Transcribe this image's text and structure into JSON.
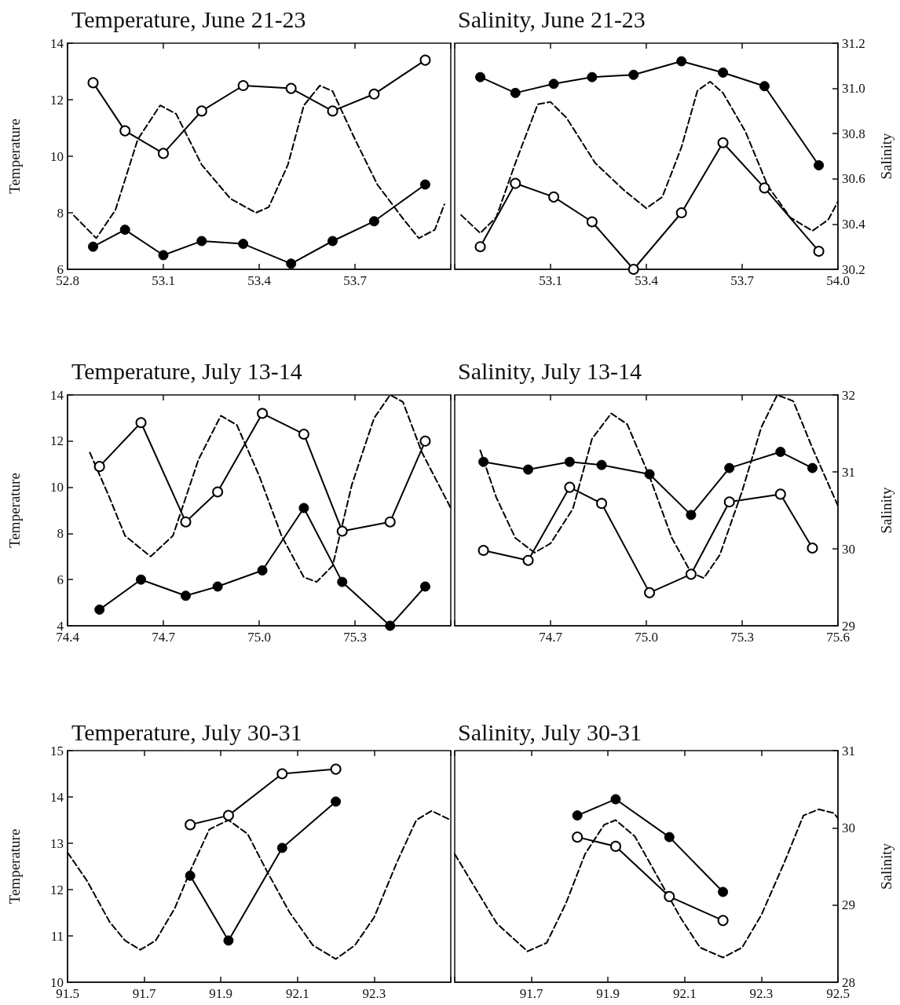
{
  "chart_data": [
    {
      "type": "line",
      "title": "Temperature, June 21-23",
      "ylabel": "Temperature",
      "xlim": [
        52.8,
        54.0
      ],
      "xticks": [
        52.8,
        53.1,
        53.4,
        53.7,
        {
          "value": 54,
          "label": null
        }
      ],
      "ylim": [
        6,
        14
      ],
      "yticks": [
        6,
        8,
        10,
        12,
        14
      ],
      "series": [
        {
          "color": "#000000",
          "marker": "circle_open",
          "line_style": "solid",
          "x": [
            52.88,
            52.98,
            53.1,
            53.22,
            53.35,
            53.5,
            53.63,
            53.76,
            53.92
          ],
          "values": [
            12.6,
            10.9,
            10.1,
            11.6,
            12.5,
            12.4,
            11.6,
            12.2,
            13.4
          ]
        },
        {
          "color": "#000000",
          "marker": "circle",
          "line_style": "solid",
          "x": [
            52.88,
            52.98,
            53.1,
            53.22,
            53.35,
            53.5,
            53.63,
            53.76,
            53.92
          ],
          "values": [
            6.8,
            7.4,
            6.5,
            7.0,
            6.9,
            6.2,
            7.0,
            7.7,
            9.0
          ]
        },
        {
          "color": "#000000",
          "marker": "none",
          "line_style": "dashed",
          "x": [
            52.82,
            52.89,
            52.95,
            53.02,
            53.09,
            53.14,
            53.22,
            53.31,
            53.39,
            53.43,
            53.49,
            53.54,
            53.59,
            53.63,
            53.7,
            53.77,
            53.85,
            53.9,
            53.95,
            53.98
          ],
          "values": [
            7.9,
            7.1,
            8.1,
            10.6,
            11.8,
            11.5,
            9.7,
            8.5,
            8.0,
            8.2,
            9.7,
            11.8,
            12.5,
            12.3,
            10.6,
            9.0,
            7.8,
            7.1,
            7.4,
            8.3
          ]
        }
      ]
    },
    {
      "type": "line",
      "title": "Salinity, June 21-23",
      "y2label": "Salinity",
      "xlim": [
        52.8,
        54.0
      ],
      "xticks": [
        {
          "value": 52.8,
          "label": null
        },
        53.1,
        53.4,
        53.7,
        {
          "value": 54,
          "label": "54.0"
        }
      ],
      "y2lim": [
        30.2,
        31.2
      ],
      "y2ticks": [
        30.2,
        30.4,
        30.6,
        30.8,
        {
          "value": 31,
          "label": "31.0"
        },
        31.2
      ],
      "series": [
        {
          "color": "#000000",
          "marker": "circle",
          "line_style": "solid",
          "axis": "y2",
          "x": [
            52.88,
            52.99,
            53.11,
            53.23,
            53.36,
            53.51,
            53.64,
            53.77,
            53.94
          ],
          "values": [
            31.05,
            30.98,
            31.02,
            31.05,
            31.06,
            31.12,
            31.07,
            31.01,
            30.66
          ]
        },
        {
          "color": "#000000",
          "marker": "circle_open",
          "line_style": "solid",
          "axis": "y2",
          "x": [
            52.88,
            52.99,
            53.11,
            53.23,
            53.36,
            53.51,
            53.64,
            53.77,
            53.94
          ],
          "values": [
            30.3,
            30.58,
            30.52,
            30.41,
            30.2,
            30.45,
            30.76,
            30.56,
            30.28
          ]
        },
        {
          "color": "#000000",
          "marker": "none",
          "line_style": "dashed",
          "axis": "y2",
          "x": [
            52.82,
            52.88,
            52.93,
            52.99,
            53.06,
            53.1,
            53.15,
            53.24,
            53.33,
            53.4,
            53.45,
            53.51,
            53.56,
            53.6,
            53.64,
            53.71,
            53.78,
            53.85,
            53.92,
            53.97,
            54.0
          ],
          "values": [
            30.44,
            30.36,
            30.43,
            30.67,
            30.93,
            30.94,
            30.87,
            30.67,
            30.55,
            30.47,
            30.52,
            30.74,
            30.99,
            31.03,
            30.98,
            30.81,
            30.57,
            30.43,
            30.37,
            30.42,
            30.5
          ]
        }
      ]
    },
    {
      "type": "line",
      "title": "Temperature, July 13-14",
      "ylabel": "Temperature",
      "xlim": [
        74.4,
        75.6
      ],
      "xticks": [
        74.4,
        74.7,
        {
          "value": 75,
          "label": "75.0"
        },
        75.3,
        {
          "value": 75.6,
          "label": null
        }
      ],
      "ylim": [
        4,
        14
      ],
      "yticks": [
        4,
        6,
        8,
        10,
        12,
        14
      ],
      "series": [
        {
          "color": "#000000",
          "marker": "circle_open",
          "line_style": "solid",
          "x": [
            74.5,
            74.63,
            74.77,
            74.87,
            75.01,
            75.14,
            75.26,
            75.41,
            75.52
          ],
          "values": [
            10.9,
            12.8,
            8.5,
            9.8,
            13.2,
            12.3,
            8.1,
            8.5,
            12.0
          ]
        },
        {
          "color": "#000000",
          "marker": "circle",
          "line_style": "solid",
          "x": [
            74.5,
            74.63,
            74.77,
            74.87,
            75.01,
            75.14,
            75.26,
            75.41,
            75.52
          ],
          "values": [
            4.7,
            6.0,
            5.3,
            5.7,
            6.4,
            9.1,
            5.9,
            4.0,
            5.7
          ]
        },
        {
          "color": "#000000",
          "marker": "none",
          "line_style": "dashed",
          "x": [
            74.47,
            74.53,
            74.58,
            74.66,
            74.73,
            74.81,
            74.88,
            74.93,
            75.0,
            75.07,
            75.14,
            75.18,
            75.23,
            75.29,
            75.36,
            75.41,
            75.45,
            75.51,
            75.6
          ],
          "values": [
            11.5,
            9.6,
            7.9,
            7.0,
            7.9,
            11.2,
            13.1,
            12.7,
            10.5,
            7.9,
            6.1,
            5.9,
            6.6,
            10.1,
            13.0,
            14.0,
            13.7,
            11.5,
            9.1
          ]
        }
      ]
    },
    {
      "type": "line",
      "title": "Salinity, July 13-14",
      "y2label": "Salinity",
      "xlim": [
        74.4,
        75.6
      ],
      "xticks": [
        {
          "value": 74.4,
          "label": null
        },
        74.7,
        {
          "value": 75,
          "label": "75.0"
        },
        75.3,
        75.6
      ],
      "y2lim": [
        29,
        32
      ],
      "y2ticks": [
        29,
        30,
        31,
        32
      ],
      "series": [
        {
          "color": "#000000",
          "marker": "circle",
          "line_style": "solid",
          "axis": "y2",
          "x": [
            74.49,
            74.63,
            74.76,
            74.86,
            75.01,
            75.14,
            75.26,
            75.42,
            75.52
          ],
          "values": [
            31.13,
            31.03,
            31.13,
            31.09,
            30.97,
            30.44,
            31.05,
            31.26,
            31.05
          ]
        },
        {
          "color": "#000000",
          "marker": "circle_open",
          "line_style": "solid",
          "axis": "y2",
          "x": [
            74.49,
            74.63,
            74.76,
            74.86,
            75.01,
            75.14,
            75.26,
            75.42,
            75.52
          ],
          "values": [
            29.98,
            29.85,
            30.8,
            30.59,
            29.43,
            29.67,
            30.61,
            30.71,
            30.01
          ]
        },
        {
          "color": "#000000",
          "marker": "none",
          "line_style": "dashed",
          "axis": "y2",
          "x": [
            74.48,
            74.53,
            74.59,
            74.65,
            74.7,
            74.77,
            74.83,
            74.89,
            74.94,
            75.01,
            75.08,
            75.14,
            75.18,
            75.23,
            75.3,
            75.36,
            75.41,
            75.46,
            75.52,
            75.6
          ],
          "values": [
            31.28,
            30.67,
            30.14,
            29.95,
            30.07,
            30.52,
            31.43,
            31.76,
            31.62,
            30.94,
            30.14,
            29.69,
            29.62,
            29.92,
            30.75,
            31.58,
            32.0,
            31.92,
            31.31,
            30.56
          ]
        }
      ]
    },
    {
      "type": "line",
      "title": "Temperature, July 30-31",
      "ylabel": "Temperature",
      "xlim": [
        91.5,
        92.5
      ],
      "xticks": [
        91.5,
        91.7,
        91.9,
        92.1,
        92.3,
        {
          "value": 92.5,
          "label": null
        }
      ],
      "ylim": [
        10,
        15
      ],
      "yticks": [
        10,
        11,
        12,
        13,
        14,
        15
      ],
      "series": [
        {
          "color": "#000000",
          "marker": "circle_open",
          "line_style": "solid",
          "x": [
            91.82,
            91.92,
            92.06,
            92.2
          ],
          "values": [
            13.4,
            13.6,
            14.5,
            14.6
          ]
        },
        {
          "color": "#000000",
          "marker": "circle",
          "line_style": "solid",
          "x": [
            91.82,
            91.92,
            92.06,
            92.2
          ],
          "values": [
            12.3,
            10.9,
            12.9,
            13.9
          ]
        },
        {
          "color": "#000000",
          "marker": "none",
          "line_style": "dashed",
          "x": [
            91.5,
            91.55,
            91.61,
            91.65,
            91.69,
            91.73,
            91.78,
            91.82,
            91.87,
            91.92,
            91.97,
            92.02,
            92.08,
            92.14,
            92.2,
            92.25,
            92.3,
            92.36,
            92.41,
            92.45,
            92.5
          ],
          "values": [
            12.8,
            12.2,
            11.3,
            10.9,
            10.7,
            10.9,
            11.6,
            12.4,
            13.3,
            13.5,
            13.2,
            12.4,
            11.5,
            10.8,
            10.5,
            10.8,
            11.4,
            12.6,
            13.5,
            13.7,
            13.5
          ]
        }
      ]
    },
    {
      "type": "line",
      "title": "Salinity, July 30-31",
      "y2label": "Salinity",
      "xlim": [
        91.5,
        92.5
      ],
      "xticks": [
        {
          "value": 91.5,
          "label": null
        },
        91.7,
        91.9,
        92.1,
        92.3,
        92.5
      ],
      "y2lim": [
        28,
        31
      ],
      "y2ticks": [
        28,
        29,
        30,
        31
      ],
      "series": [
        {
          "color": "#000000",
          "marker": "circle",
          "line_style": "solid",
          "axis": "y2",
          "x": [
            91.82,
            91.92,
            92.06,
            92.2
          ],
          "values": [
            30.16,
            30.37,
            29.88,
            29.17
          ]
        },
        {
          "color": "#000000",
          "marker": "circle_open",
          "line_style": "solid",
          "axis": "y2",
          "x": [
            91.82,
            91.92,
            92.06,
            92.2
          ],
          "values": [
            29.88,
            29.76,
            29.11,
            28.8
          ]
        },
        {
          "color": "#000000",
          "marker": "none",
          "line_style": "dashed",
          "axis": "y2",
          "x": [
            91.5,
            91.55,
            91.61,
            91.69,
            91.74,
            91.79,
            91.84,
            91.89,
            91.92,
            91.97,
            92.03,
            92.09,
            92.14,
            92.2,
            92.25,
            92.3,
            92.36,
            92.41,
            92.45,
            92.49,
            92.5
          ],
          "values": [
            29.66,
            29.25,
            28.76,
            28.4,
            28.51,
            29.02,
            29.66,
            30.04,
            30.1,
            29.89,
            29.36,
            28.83,
            28.45,
            28.32,
            28.45,
            28.87,
            29.55,
            30.16,
            30.24,
            30.19,
            30.12
          ]
        }
      ]
    }
  ]
}
